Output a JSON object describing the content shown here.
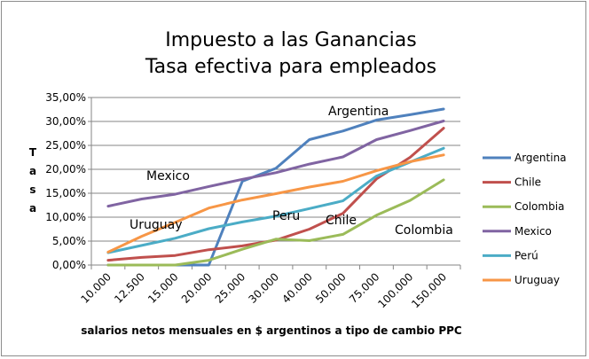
{
  "chart_data": {
    "type": "line",
    "title_lines": [
      "Impuesto a las Ganancias",
      "Tasa efectiva para empleados"
    ],
    "xlabel": "salarios netos mensuales en $ argentinos a tipo de cambio PPC",
    "ylabel": "Tasa",
    "categories": [
      "10.000",
      "12.500",
      "15.000",
      "20.000",
      "25.000",
      "30.000",
      "40.000",
      "50.000",
      "75.000",
      "100.000",
      "150.000"
    ],
    "ylim": [
      0,
      35
    ],
    "yticks": [
      "0,00%",
      "5,00%",
      "10,00%",
      "15,00%",
      "20,00%",
      "25,00%",
      "30,00%",
      "35,00%"
    ],
    "grid": true,
    "legend_position": "right",
    "series": [
      {
        "name": "Argentina",
        "color": "#4f81bd",
        "values": [
          0,
          0,
          0,
          0,
          17.5,
          20.2,
          26.2,
          28.0,
          30.3,
          31.4,
          32.6
        ]
      },
      {
        "name": "Chile",
        "color": "#c0504d",
        "values": [
          1.0,
          1.6,
          2.0,
          3.2,
          4.0,
          5.2,
          7.5,
          10.8,
          18.0,
          22.5,
          28.6
        ]
      },
      {
        "name": "Colombia",
        "color": "#9bbb59",
        "values": [
          0,
          0,
          0,
          1.0,
          3.3,
          5.4,
          5.1,
          6.4,
          10.4,
          13.5,
          17.8
        ]
      },
      {
        "name": "Mexico",
        "color": "#8064a2",
        "values": [
          12.3,
          13.8,
          14.8,
          16.4,
          17.9,
          19.3,
          21.1,
          22.6,
          26.2,
          28.1,
          30.1
        ]
      },
      {
        "name": "Perú",
        "color": "#4bacc6",
        "values": [
          2.6,
          4.1,
          5.6,
          7.6,
          9.0,
          10.2,
          11.8,
          13.4,
          18.6,
          21.5,
          24.4
        ]
      },
      {
        "name": "Uruguay",
        "color": "#f79646",
        "values": [
          2.7,
          6.0,
          8.9,
          11.9,
          13.6,
          14.9,
          16.3,
          17.5,
          19.7,
          21.6,
          23.0
        ]
      }
    ],
    "annotations": [
      "Argentina",
      "Mexico",
      "Uruguay",
      "Peru",
      "Chile",
      "Colombia"
    ]
  }
}
